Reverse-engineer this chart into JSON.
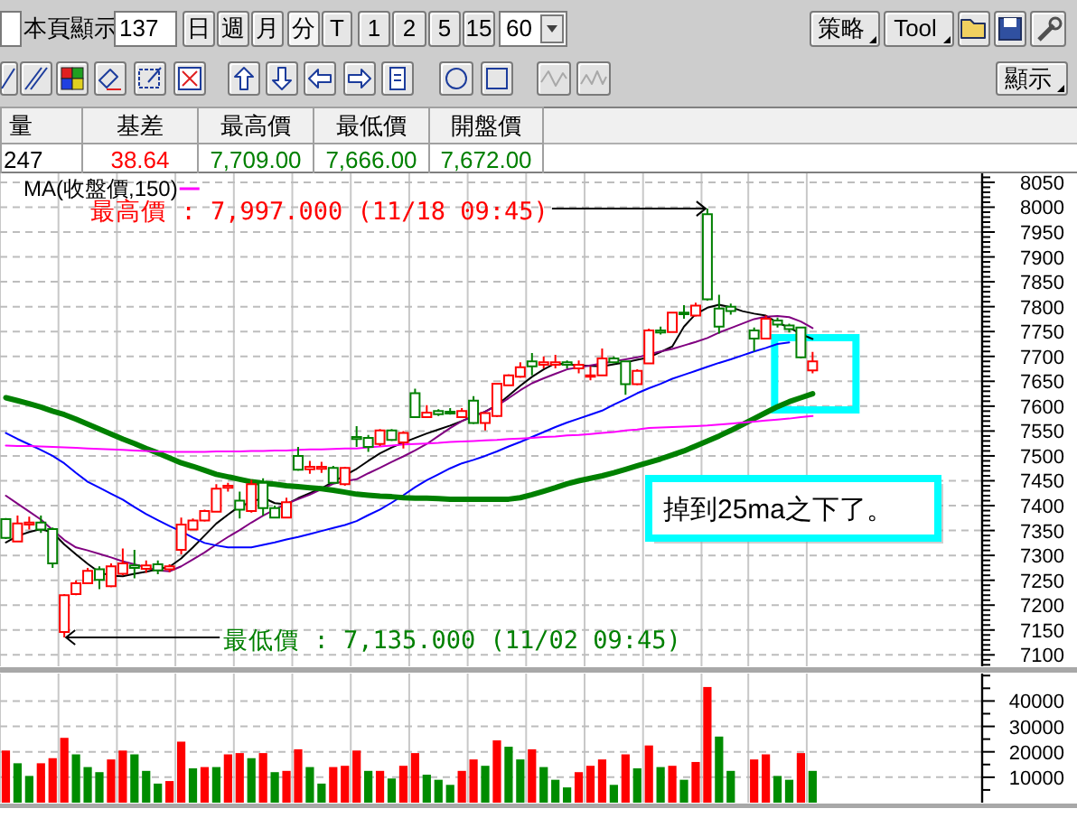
{
  "chart_data": [
    {
      "type": "other",
      "annotations": [
        "本頁顯示",
        "137",
        "日",
        "週",
        "月",
        "分",
        "T",
        "1",
        "2",
        "5",
        "15",
        "60",
        "策略",
        "Tool",
        "顯示",
        "量",
        "基差",
        "最高價",
        "最低價",
        "開盤價",
        "247",
        "38.64",
        "7,709.00",
        "7,666.00",
        "7,672.00"
      ]
    },
    {
      "type": "candlestick",
      "categories": [
        null,
        null,
        null,
        null,
        null,
        null,
        null,
        null,
        null,
        null,
        null,
        null,
        null,
        null,
        null,
        null,
        null,
        null,
        null,
        null,
        null,
        null,
        null,
        null,
        null,
        null,
        null,
        null,
        null,
        null,
        null,
        null,
        null,
        null,
        null,
        null,
        null,
        null,
        null,
        null,
        null,
        null,
        null,
        null,
        null,
        null,
        null,
        null,
        null,
        null,
        null,
        null,
        null,
        null,
        null,
        null,
        null,
        null,
        null,
        null,
        null,
        null,
        null,
        null,
        null,
        null,
        null,
        null,
        null,
        null,
        null,
        null,
        null,
        null,
        null,
        null,
        null,
        null,
        null,
        null,
        null,
        null,
        null,
        null
      ],
      "ohlc": [
        [
          7373,
          7375,
          7333,
          7335
        ],
        [
          7328,
          7380,
          7326,
          7364
        ],
        [
          7362,
          7378,
          7352,
          7366
        ],
        [
          7366,
          7380,
          7345,
          7352
        ],
        [
          7353,
          7356,
          7275,
          7284
        ],
        [
          7146,
          7222,
          7135,
          7220
        ],
        [
          7222,
          7250,
          7220,
          7244
        ],
        [
          7244,
          7275,
          7242,
          7269
        ],
        [
          7272,
          7278,
          7232,
          7251
        ],
        [
          7238,
          7284,
          7236,
          7278
        ],
        [
          7263,
          7314,
          7260,
          7284
        ],
        [
          7280,
          7311,
          7254,
          7275
        ],
        [
          7273,
          7290,
          7265,
          7280
        ],
        [
          7282,
          7290,
          7262,
          7270
        ],
        [
          7272,
          7282,
          7266,
          7278
        ],
        [
          7311,
          7376,
          7302,
          7362
        ],
        [
          7352,
          7374,
          7350,
          7370
        ],
        [
          7370,
          7392,
          7368,
          7389
        ],
        [
          7388,
          7443,
          7386,
          7434
        ],
        [
          7436,
          7446,
          7428,
          7440
        ],
        [
          7410,
          7428,
          7374,
          7392
        ],
        [
          7389,
          7452,
          7386,
          7443
        ],
        [
          7446,
          7455,
          7380,
          7395
        ],
        [
          7395,
          7400,
          7374,
          7376
        ],
        [
          7376,
          7416,
          7374,
          7407
        ],
        [
          7500,
          7518,
          7470,
          7472
        ],
        [
          7473,
          7490,
          7464,
          7478
        ],
        [
          7474,
          7488,
          7466,
          7478
        ],
        [
          7476,
          7480,
          7444,
          7446
        ],
        [
          7443,
          7478,
          7440,
          7476
        ],
        [
          7538,
          7560,
          7518,
          7534
        ],
        [
          7536,
          7542,
          7508,
          7518
        ],
        [
          7524,
          7554,
          7520,
          7551
        ],
        [
          7551,
          7554,
          7530,
          7532
        ],
        [
          7527,
          7550,
          7515,
          7546
        ],
        [
          7626,
          7635,
          7576,
          7578
        ],
        [
          7578,
          7602,
          7576,
          7587
        ],
        [
          7590,
          7594,
          7580,
          7584
        ],
        [
          7589,
          7596,
          7583,
          7585
        ],
        [
          7578,
          7596,
          7576,
          7590
        ],
        [
          7611,
          7620,
          7564,
          7566
        ],
        [
          7566,
          7588,
          7551,
          7586
        ],
        [
          7580,
          7647,
          7578,
          7645
        ],
        [
          7642,
          7664,
          7640,
          7662
        ],
        [
          7659,
          7688,
          7657,
          7678
        ],
        [
          7690,
          7707,
          7662,
          7680
        ],
        [
          7683,
          7700,
          7676,
          7688
        ],
        [
          7683,
          7703,
          7676,
          7688
        ],
        [
          7688,
          7692,
          7676,
          7683
        ],
        [
          7676,
          7692,
          7666,
          7683
        ],
        [
          7659,
          7680,
          7652,
          7662
        ],
        [
          7662,
          7716,
          7660,
          7696
        ],
        [
          7696,
          7700,
          7686,
          7688
        ],
        [
          7690,
          7692,
          7623,
          7644
        ],
        [
          7644,
          7674,
          7642,
          7671
        ],
        [
          7686,
          7756,
          7684,
          7752
        ],
        [
          7752,
          7760,
          7744,
          7748
        ],
        [
          7749,
          7790,
          7747,
          7788
        ],
        [
          7788,
          7803,
          7776,
          7785
        ],
        [
          7782,
          7808,
          7780,
          7802
        ],
        [
          7986,
          7997,
          7812,
          7815
        ],
        [
          7796,
          7824,
          7746,
          7760
        ],
        [
          7800,
          7806,
          7784,
          7791
        ],
        null,
        [
          7752,
          7758,
          7710,
          7736
        ],
        [
          7736,
          7782,
          7734,
          7776
        ],
        [
          7772,
          7778,
          7758,
          7764
        ],
        [
          7762,
          7766,
          7748,
          7755
        ],
        [
          7758,
          7760,
          7696,
          7698
        ],
        [
          7672,
          7709,
          7666,
          7690
        ],
        null,
        null,
        null,
        null,
        null,
        null,
        null,
        null,
        null,
        null,
        null,
        null,
        null,
        null
      ],
      "colors": [
        "#008000",
        "#ff0000",
        "#ff0000",
        "#008000",
        "#008000",
        "#ff0000",
        "#ff0000",
        "#ff0000",
        "#008000",
        "#ff0000",
        "#ff0000",
        "#008000",
        "#ff0000",
        "#008000",
        "#ff0000",
        "#ff0000",
        "#ff0000",
        "#ff0000",
        "#ff0000",
        "#ff0000",
        "#008000",
        "#ff0000",
        "#008000",
        "#008000",
        "#ff0000",
        "#008000",
        "#ff0000",
        "#ff0000",
        "#008000",
        "#ff0000",
        "#008000",
        "#008000",
        "#ff0000",
        "#008000",
        "#ff0000",
        "#008000",
        "#ff0000",
        "#008000",
        "#008000",
        "#ff0000",
        "#008000",
        "#ff0000",
        "#ff0000",
        "#ff0000",
        "#ff0000",
        "#008000",
        "#ff0000",
        "#ff0000",
        "#008000",
        "#ff0000",
        "#ff0000",
        "#ff0000",
        "#008000",
        "#008000",
        "#ff0000",
        "#ff0000",
        "#008000",
        "#ff0000",
        "#008000",
        "#ff0000",
        "#008000",
        "#008000",
        "#008000",
        null,
        "#008000",
        "#ff0000",
        "#008000",
        "#008000",
        "#008000",
        "#ff0000",
        null,
        null,
        null,
        null,
        null,
        null,
        null,
        null,
        null,
        null,
        null,
        null,
        null,
        null
      ],
      "series": [
        {
          "type": "line",
          "color": "#000000",
          "values": [
            7326,
            7339,
            7347,
            7353,
            7346,
            7322,
            7302,
            7283,
            7266,
            7259,
            7258,
            7263,
            7267,
            7272,
            7277,
            7294,
            7316,
            7340,
            7364,
            7382,
            7399,
            7407,
            7416,
            7405,
            7403,
            7415,
            7425,
            7435,
            7448,
            7461,
            7474,
            7490,
            7505,
            7517,
            7527,
            7536,
            7545,
            7553,
            7561,
            7570,
            7580,
            7589,
            7602,
            7621,
            7641,
            7659,
            7674,
            7686,
            null,
            7682,
            7681,
            7680,
            7684,
            7688,
            7693,
            7698,
            7709,
            7720,
            7760,
            7785,
            7798,
            7804,
            7799,
            7791,
            7786,
            7782,
            7768,
            7758,
            7745,
            7735,
            null,
            null,
            null,
            null,
            null,
            null,
            null,
            null,
            null,
            null,
            null,
            null,
            null,
            null
          ]
        },
        {
          "type": "line",
          "color": "#800080",
          "values": [
            7420,
            7404,
            7388,
            7372,
            7351,
            7331,
            7316,
            7310,
            7303,
            7296,
            7288,
            7282,
            7276,
            7270,
            7268,
            7278,
            7292,
            7306,
            7322,
            7337,
            7351,
            7366,
            7380,
            7392,
            7404,
            7413,
            7422,
            7433,
            7444,
            7449,
            7453,
            7465,
            7476,
            7488,
            7499,
            7511,
            7524,
            7540,
            7556,
            7570,
            7580,
            7589,
            7601,
            7616,
            7632,
            7646,
            7656,
            7665,
            7674,
            7678,
            7682,
            7686,
            7690,
            7694,
            7698,
            7704,
            7710,
            7715,
            7722,
            7729,
            7737,
            7748,
            7757,
            7766,
            7775,
            7780,
            7781,
            7779,
            7770,
            7757,
            null,
            null,
            null,
            null,
            null,
            null,
            null,
            null,
            null,
            null,
            null,
            null,
            null,
            null
          ]
        },
        {
          "type": "line",
          "color": "#0000ff",
          "values": [
            7546,
            7534,
            7523,
            7512,
            7500,
            7485,
            7466,
            7448,
            7436,
            7424,
            7412,
            7397,
            7383,
            7371,
            7359,
            7348,
            7336,
            7325,
            7320,
            7316,
            7316,
            7316,
            7321,
            7326,
            7332,
            7337,
            7343,
            7349,
            7355,
            7361,
            7369,
            7381,
            7392,
            7406,
            7421,
            7437,
            7451,
            7463,
            7475,
            7485,
            7492,
            7500,
            7509,
            7519,
            7528,
            7538,
            7548,
            7558,
            7567,
            7575,
            7583,
            7591,
            7603,
            7614,
            7626,
            7636,
            7645,
            7655,
            7663,
            7671,
            7679,
            7687,
            7694,
            7702,
            7710,
            7717,
            7725,
            7728,
            null,
            null,
            null,
            null,
            null,
            null,
            null,
            null,
            null,
            null,
            null,
            null,
            null,
            null,
            null,
            null
          ]
        },
        {
          "type": "line",
          "color": "#008000",
          "values": [
            7617,
            7611,
            7605,
            7598,
            7590,
            7583,
            7574,
            7564,
            7554,
            7544,
            7534,
            7525,
            7515,
            7506,
            7496,
            7486,
            7479,
            7471,
            7463,
            7458,
            7453,
            7448,
            7445,
            7443,
            7440,
            7438,
            7436,
            7434,
            7431,
            7427,
            7423,
            7421,
            7419,
            7418,
            7416,
            7415,
            7415,
            7414,
            7413,
            7413,
            7413,
            7413,
            7413,
            7413,
            7416,
            7422,
            7429,
            7436,
            7444,
            7450,
            7455,
            7460,
            7466,
            7473,
            7480,
            7487,
            7494,
            7502,
            7510,
            7520,
            7530,
            7540,
            7551,
            7563,
            7575,
            7587,
            7599,
            7609,
            7617,
            7625,
            null,
            null,
            null,
            null,
            null,
            null,
            null,
            null,
            null,
            null,
            null,
            null,
            null,
            null
          ]
        },
        {
          "type": "line",
          "color": "#ff00ff",
          "name": "MA(收盤價,150)",
          "values": [
            7521,
            7520,
            7520,
            7519,
            7518,
            7517,
            7516,
            7515,
            7514,
            7513,
            7512,
            7511,
            7510,
            7509,
            7508,
            7508,
            7508,
            7508,
            7509,
            7509,
            7509,
            7510,
            7510,
            7511,
            7511,
            7512,
            7513,
            7513,
            7514,
            7515,
            7515,
            7517,
            7519,
            7521,
            7523,
            7524,
            7525,
            7526,
            7528,
            7529,
            7530,
            7531,
            7532,
            7534,
            7535,
            7536,
            7538,
            7539,
            7541,
            7542,
            7544,
            7546,
            7548,
            7551,
            7553,
            7556,
            7557,
            7558,
            7559,
            7560,
            7561,
            7563,
            7565,
            7567,
            7569,
            7571,
            7573,
            7575,
            7578,
            7580,
            null,
            null,
            null,
            null,
            null,
            null,
            null,
            null,
            null,
            null,
            null,
            null,
            null,
            null
          ]
        }
      ],
      "ylim": [
        7077,
        8068
      ],
      "yticks": [
        {
          "value": 7080,
          "label": null
        },
        {
          "value": 7090,
          "label": null
        },
        7100,
        {
          "value": 7110,
          "label": null
        },
        {
          "value": 7120,
          "label": null
        },
        {
          "value": 7130,
          "label": null
        },
        {
          "value": 7140,
          "label": null
        },
        7150,
        {
          "value": 7160,
          "label": null
        },
        {
          "value": 7170,
          "label": null
        },
        {
          "value": 7180,
          "label": null
        },
        {
          "value": 7190,
          "label": null
        },
        7200,
        {
          "value": 7210,
          "label": null
        },
        {
          "value": 7220,
          "label": null
        },
        {
          "value": 7230,
          "label": null
        },
        {
          "value": 7240,
          "label": null
        },
        7250,
        {
          "value": 7260,
          "label": null
        },
        {
          "value": 7270,
          "label": null
        },
        {
          "value": 7280,
          "label": null
        },
        {
          "value": 7290,
          "label": null
        },
        7300,
        {
          "value": 7310,
          "label": null
        },
        {
          "value": 7320,
          "label": null
        },
        {
          "value": 7330,
          "label": null
        },
        {
          "value": 7340,
          "label": null
        },
        7350,
        {
          "value": 7360,
          "label": null
        },
        {
          "value": 7370,
          "label": null
        },
        {
          "value": 7380,
          "label": null
        },
        {
          "value": 7390,
          "label": null
        },
        7400,
        {
          "value": 7410,
          "label": null
        },
        {
          "value": 7420,
          "label": null
        },
        {
          "value": 7430,
          "label": null
        },
        {
          "value": 7440,
          "label": null
        },
        7450,
        {
          "value": 7460,
          "label": null
        },
        {
          "value": 7470,
          "label": null
        },
        {
          "value": 7480,
          "label": null
        },
        {
          "value": 7490,
          "label": null
        },
        7500,
        {
          "value": 7510,
          "label": null
        },
        {
          "value": 7520,
          "label": null
        },
        {
          "value": 7530,
          "label": null
        },
        {
          "value": 7540,
          "label": null
        },
        7550,
        {
          "value": 7560,
          "label": null
        },
        {
          "value": 7570,
          "label": null
        },
        {
          "value": 7580,
          "label": null
        },
        {
          "value": 7590,
          "label": null
        },
        7600,
        {
          "value": 7610,
          "label": null
        },
        {
          "value": 7620,
          "label": null
        },
        {
          "value": 7630,
          "label": null
        },
        {
          "value": 7640,
          "label": null
        },
        7650,
        {
          "value": 7660,
          "label": null
        },
        {
          "value": 7670,
          "label": null
        },
        {
          "value": 7680,
          "label": null
        },
        {
          "value": 7690,
          "label": null
        },
        7700,
        {
          "value": 7710,
          "label": null
        },
        {
          "value": 7720,
          "label": null
        },
        {
          "value": 7730,
          "label": null
        },
        {
          "value": 7740,
          "label": null
        },
        7750,
        {
          "value": 7760,
          "label": null
        },
        {
          "value": 7770,
          "label": null
        },
        {
          "value": 7780,
          "label": null
        },
        {
          "value": 7790,
          "label": null
        },
        7800,
        {
          "value": 7810,
          "label": null
        },
        {
          "value": 7820,
          "label": null
        },
        {
          "value": 7830,
          "label": null
        },
        {
          "value": 7840,
          "label": null
        },
        7850,
        {
          "value": 7860,
          "label": null
        },
        {
          "value": 7870,
          "label": null
        },
        {
          "value": 7880,
          "label": null
        },
        {
          "value": 7890,
          "label": null
        },
        7900,
        {
          "value": 7910,
          "label": null
        },
        {
          "value": 7920,
          "label": null
        },
        {
          "value": 7930,
          "label": null
        },
        {
          "value": 7940,
          "label": null
        },
        7950,
        {
          "value": 7960,
          "label": null
        },
        {
          "value": 7970,
          "label": null
        },
        {
          "value": 7980,
          "label": null
        },
        {
          "value": 7990,
          "label": null
        },
        8000,
        {
          "value": 8010,
          "label": null
        },
        {
          "value": 8020,
          "label": null
        },
        {
          "value": 8030,
          "label": null
        },
        {
          "value": 8040,
          "label": null
        },
        8050,
        {
          "value": 8060,
          "label": null
        }
      ],
      "grid": true,
      "legend": "top left",
      "tick_labels": "y",
      "annotations": [
        "最高價 : 7,997.000 (11/18 09:45)",
        "最低價 : 7,135.000 (11/02 09:45)",
        "掉到25ma之下了。"
      ]
    },
    {
      "type": "bar",
      "categories": [
        null,
        null,
        null,
        null,
        null,
        null,
        null,
        null,
        null,
        null,
        null,
        null,
        null,
        null,
        null,
        null,
        null,
        null,
        null,
        null,
        null,
        null,
        null,
        null,
        null,
        null,
        null,
        null,
        null,
        null,
        null,
        null,
        null,
        null,
        null,
        null,
        null,
        null,
        null,
        null,
        null,
        null,
        null,
        null,
        null,
        null,
        null,
        null,
        null,
        null,
        null,
        null,
        null,
        null,
        null,
        null,
        null,
        null,
        null,
        null,
        null,
        null,
        null,
        null,
        null,
        null,
        null,
        null,
        null,
        null,
        null,
        null,
        null,
        null,
        null,
        null,
        null,
        null,
        null,
        null,
        null,
        null,
        null,
        null
      ],
      "values": [
        20500,
        15500,
        10500,
        15500,
        17500,
        25500,
        19000,
        14000,
        12000,
        17000,
        20500,
        19000,
        12500,
        7500,
        8500,
        24000,
        13500,
        14000,
        14000,
        19000,
        19500,
        17500,
        19500,
        12000,
        12500,
        21000,
        14000,
        7500,
        14000,
        14500,
        20500,
        12500,
        12500,
        9500,
        14500,
        19500,
        11000,
        9000,
        7000,
        12500,
        17000,
        14500,
        24500,
        22000,
        17000,
        21000,
        14000,
        9000,
        6000,
        12000,
        14500,
        17000,
        7000,
        19000,
        13500,
        22500,
        14000,
        14500,
        9000,
        16000,
        45500,
        26000,
        12500,
        null,
        17000,
        19000,
        10500,
        9000,
        19500,
        12500,
        null,
        null,
        null,
        null,
        null,
        null,
        null,
        null,
        null,
        null,
        null,
        null,
        null,
        null
      ],
      "colors": [
        "#ff0000",
        "#008c00",
        "#008c00",
        "#ff0000",
        "#ff0000",
        "#ff0000",
        "#008c00",
        "#008c00",
        "#008c00",
        "#ff0000",
        "#ff0000",
        "#008c00",
        "#008c00",
        "#008c00",
        "#ff0000",
        "#ff0000",
        "#008c00",
        "#ff0000",
        "#008c00",
        "#ff0000",
        "#ff0000",
        "#008c00",
        "#ff0000",
        "#008c00",
        "#ff0000",
        "#ff0000",
        "#008c00",
        "#008c00",
        "#ff0000",
        "#ff0000",
        "#ff0000",
        "#008c00",
        "#ff0000",
        "#008c00",
        "#ff0000",
        "#ff0000",
        "#008c00",
        "#008c00",
        "#008c00",
        "#ff0000",
        "#ff0000",
        "#008c00",
        "#ff0000",
        "#008c00",
        "#008c00",
        "#ff0000",
        "#008c00",
        "#008c00",
        "#008c00",
        "#ff0000",
        "#ff0000",
        "#ff0000",
        "#008c00",
        "#ff0000",
        "#008c00",
        "#ff0000",
        "#008c00",
        "#ff0000",
        "#008c00",
        "#ff0000",
        "#ff0000",
        "#008c00",
        "#008c00",
        null,
        "#ff0000",
        "#ff0000",
        "#008c00",
        "#008c00",
        "#ff0000",
        "#008c00",
        null,
        null,
        null,
        null,
        null,
        null,
        null,
        null,
        null,
        null,
        null,
        null,
        null,
        null
      ],
      "ylim": [
        0,
        50800
      ],
      "yticks": [
        {
          "value": 5000,
          "label": null
        },
        10000,
        {
          "value": 15000,
          "label": null
        },
        20000,
        {
          "value": 25000,
          "label": null
        },
        30000,
        {
          "value": 35000,
          "label": null
        },
        40000,
        {
          "value": 45000,
          "label": null
        },
        {
          "value": 50000,
          "label": null
        }
      ],
      "grid": true,
      "tick_labels": "y"
    }
  ]
}
